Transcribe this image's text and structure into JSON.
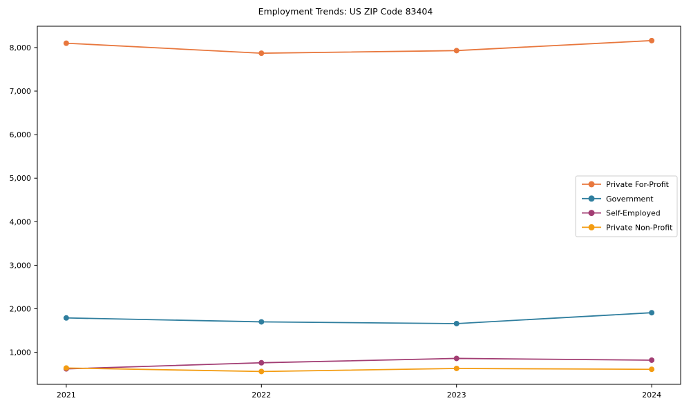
{
  "title": "Employment Trends: US ZIP Code 83404",
  "chart_data": {
    "type": "line",
    "title": "Employment Trends: US ZIP Code 83404",
    "xlabel": "",
    "ylabel": "",
    "x_categories": [
      "2021",
      "2022",
      "2023",
      "2024"
    ],
    "series": [
      {
        "name": "Private For-Profit",
        "color": "#e8773d",
        "values": [
          8100,
          7870,
          7930,
          8160
        ]
      },
      {
        "name": "Government",
        "color": "#2f7e9e",
        "values": [
          1790,
          1700,
          1660,
          1910
        ]
      },
      {
        "name": "Self-Employed",
        "color": "#a23d73",
        "values": [
          620,
          760,
          860,
          820
        ]
      },
      {
        "name": "Private Non-Profit",
        "color": "#f39c12",
        "values": [
          640,
          560,
          630,
          610
        ]
      }
    ],
    "yticks": [
      1000,
      2000,
      3000,
      4000,
      5000,
      6000,
      7000,
      8000
    ],
    "ytick_labels": [
      "1,000",
      "2,000",
      "3,000",
      "4,000",
      "5,000",
      "6,000",
      "7,000",
      "8,000"
    ],
    "ylim": [
      265,
      8490
    ],
    "grid": false,
    "marker": "circle",
    "legend_position": "center right",
    "frame_color": "#000000",
    "legend_border_color": "#cccccc",
    "background_color": "#ffffff"
  }
}
